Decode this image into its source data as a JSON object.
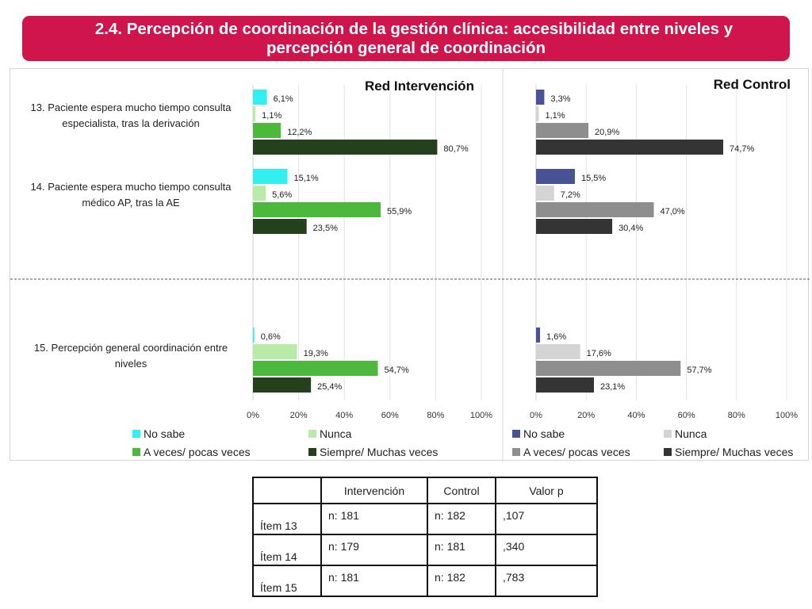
{
  "title": {
    "line1": "2.4. Percepción de coordinación de la gestión clínica: accesibilidad entre niveles y",
    "line2": "percepción general de coordinación",
    "background": "#d0144c"
  },
  "chart_data": [
    {
      "type": "bar",
      "orientation": "horizontal",
      "title": "Red Intervención",
      "categories": [
        "13. Paciente espera mucho tiempo consulta especialista, tras la derivación",
        "14. Paciente espera mucho tiempo consulta médico AP, tras la AE",
        "15. Percepción general coordinación entre niveles"
      ],
      "category_lines": [
        [
          "13. Paciente espera mucho tiempo consulta",
          "especialista, tras la derivación"
        ],
        [
          "14. Paciente espera mucho tiempo consulta",
          "médico AP, tras la AE"
        ],
        [
          "15. Percepción general coordinación entre",
          "niveles"
        ]
      ],
      "series": [
        {
          "name": "No sabe",
          "color": "#33f0f0",
          "values": [
            6.1,
            15.1,
            0.6
          ],
          "labels": [
            "6,1%",
            "15,1%",
            "0,6%"
          ]
        },
        {
          "name": "Nunca",
          "color": "#b8eba8",
          "values": [
            1.1,
            5.6,
            19.3
          ],
          "labels": [
            "1,1%",
            "5,6%",
            "19,3%"
          ]
        },
        {
          "name": "A veces/ pocas veces",
          "color": "#4cb83c",
          "values": [
            12.2,
            55.9,
            54.7
          ],
          "labels": [
            "12,2%",
            "55,9%",
            "54,7%"
          ]
        },
        {
          "name": "Siempre/ Muchas veces",
          "color": "#24401c",
          "values": [
            80.7,
            23.5,
            25.4
          ],
          "labels": [
            "80,7%",
            "23,5%",
            "25,4%"
          ]
        }
      ],
      "xlim": [
        0,
        100
      ],
      "xticks": [
        "0%",
        "20%",
        "40%",
        "60%",
        "80%",
        "100%"
      ],
      "legend": "bottom"
    },
    {
      "type": "bar",
      "orientation": "horizontal",
      "title": "Red Control",
      "series": [
        {
          "name": "No sabe",
          "color": "#4a5296",
          "values": [
            3.3,
            15.5,
            1.6
          ],
          "labels": [
            "3,3%",
            "15,5%",
            "1,6%"
          ]
        },
        {
          "name": "Nunca",
          "color": "#d4d4d4",
          "values": [
            1.1,
            7.2,
            17.6
          ],
          "labels": [
            "1,1%",
            "7,2%",
            "17,6%"
          ]
        },
        {
          "name": "A veces/ pocas veces",
          "color": "#8e8e8e",
          "values": [
            20.9,
            47.0,
            57.7
          ],
          "labels": [
            "20,9%",
            "47,0%",
            "57,7%"
          ]
        },
        {
          "name": "Siempre/ Muchas veces",
          "color": "#343434",
          "values": [
            74.7,
            30.4,
            23.1
          ],
          "labels": [
            "74,7%",
            "30,4%",
            "23,1%"
          ]
        }
      ],
      "xlim": [
        0,
        100
      ],
      "xticks": [
        "0%",
        "20%",
        "40%",
        "60%",
        "80%",
        "100%"
      ],
      "legend": "bottom"
    }
  ],
  "stats_table": {
    "headers": [
      "",
      "Intervención",
      "Control",
      "Valor p"
    ],
    "rows": [
      {
        "item": "Ítem 13",
        "intervencion": "n: 181",
        "control": "n: 182",
        "valor_p": ",107"
      },
      {
        "item": "Ítem 14",
        "intervencion": "n: 179",
        "control": "n: 181",
        "valor_p": ",340"
      },
      {
        "item": "Ítem 15",
        "intervencion": "n: 181",
        "control": "n: 182",
        "valor_p": ",783"
      }
    ]
  }
}
